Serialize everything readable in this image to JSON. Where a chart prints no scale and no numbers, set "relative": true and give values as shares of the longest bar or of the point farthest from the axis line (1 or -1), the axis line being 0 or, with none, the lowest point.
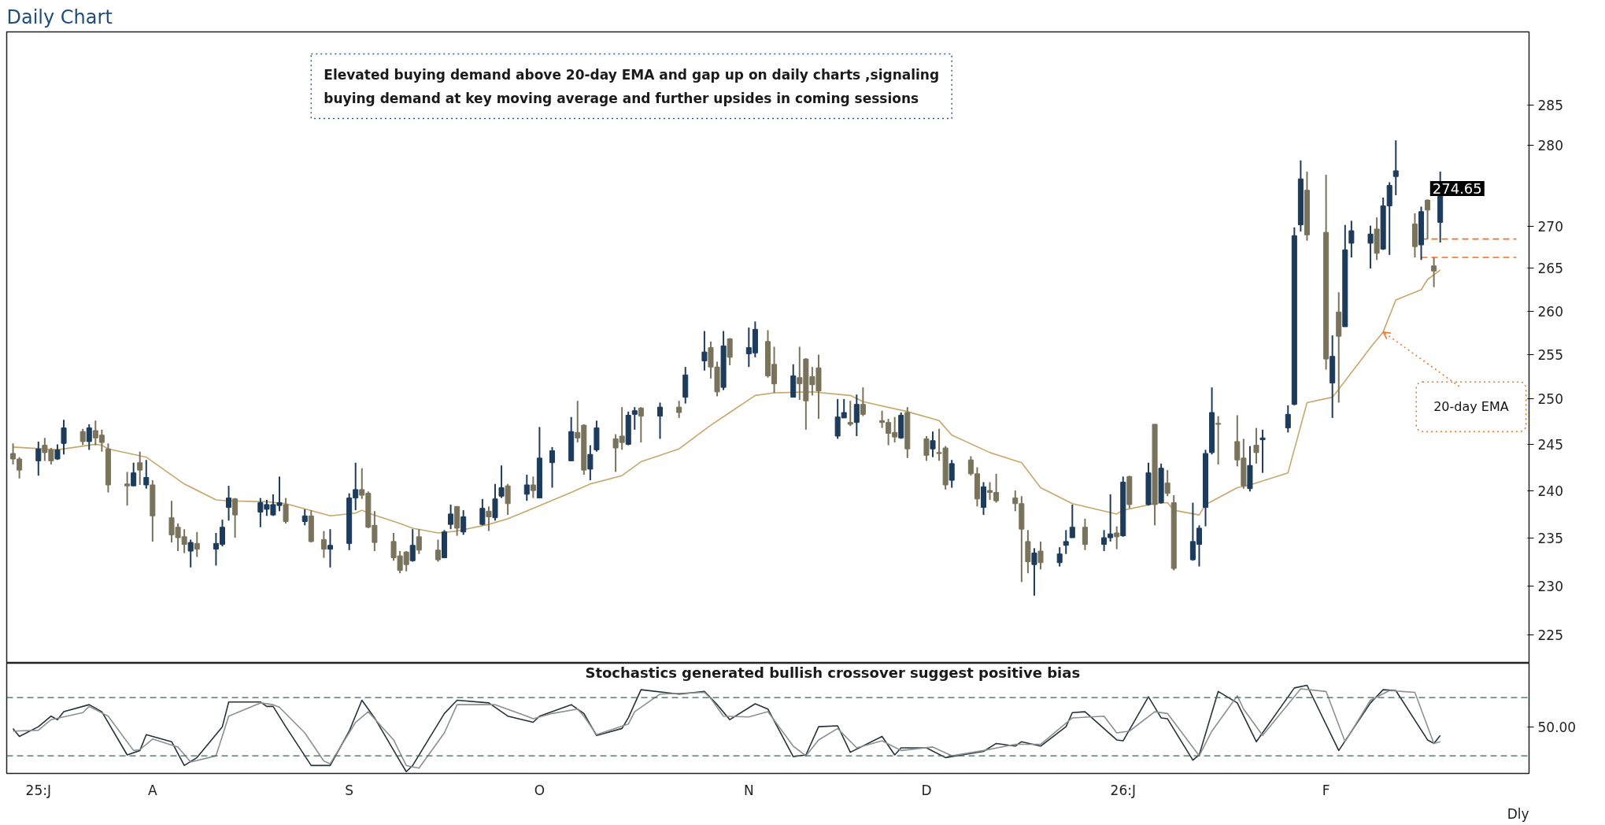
{
  "chart_data": [
    {
      "type": "candlestick",
      "title": "Daily Chart",
      "x": [
        "2025-07-10",
        "2025-07-11",
        "2025-07-14",
        "2025-07-15",
        "2025-07-16",
        "2025-07-17",
        "2025-07-18",
        "2025-07-21",
        "2025-07-22",
        "2025-07-23",
        "2025-07-24",
        "2025-07-25",
        "2025-07-28",
        "2025-07-29",
        "2025-07-30",
        "2025-07-31",
        "2025-08-01",
        "2025-08-04",
        "2025-08-05",
        "2025-08-06",
        "2025-08-07",
        "2025-08-08",
        "2025-08-11",
        "2025-08-12",
        "2025-08-13",
        "2025-08-14",
        "2025-08-18",
        "2025-08-19",
        "2025-08-20",
        "2025-08-21",
        "2025-08-22",
        "2025-08-25",
        "2025-08-26",
        "2025-08-28",
        "2025-08-29",
        "2025-09-01",
        "2025-09-02",
        "2025-09-03",
        "2025-09-04",
        "2025-09-05",
        "2025-09-08",
        "2025-09-09",
        "2025-09-10",
        "2025-09-11",
        "2025-09-12",
        "2025-09-15",
        "2025-09-16",
        "2025-09-17",
        "2025-09-18",
        "2025-09-19",
        "2025-09-22",
        "2025-09-23",
        "2025-09-24",
        "2025-09-25",
        "2025-09-26",
        "2025-09-29",
        "2025-09-30",
        "2025-10-01",
        "2025-10-03",
        "2025-10-06",
        "2025-10-07",
        "2025-10-08",
        "2025-10-09",
        "2025-10-10",
        "2025-10-13",
        "2025-10-14",
        "2025-10-15",
        "2025-10-16",
        "2025-10-17",
        "2025-10-20",
        "2025-10-23",
        "2025-10-24",
        "2025-10-27",
        "2025-10-28",
        "2025-10-29",
        "2025-10-30",
        "2025-10-31",
        "2025-11-03",
        "2025-11-04",
        "2025-11-06",
        "2025-11-07",
        "2025-11-10",
        "2025-11-11",
        "2025-11-12",
        "2025-11-13",
        "2025-11-14",
        "2025-11-17",
        "2025-11-18",
        "2025-11-19",
        "2025-11-20",
        "2025-11-21",
        "2025-11-24",
        "2025-11-25",
        "2025-11-26",
        "2025-11-27",
        "2025-11-28",
        "2025-12-01",
        "2025-12-02",
        "2025-12-03",
        "2025-12-04",
        "2025-12-05",
        "2025-12-08",
        "2025-12-09",
        "2025-12-10",
        "2025-12-11",
        "2025-12-12",
        "2025-12-15",
        "2025-12-16",
        "2025-12-17",
        "2025-12-18",
        "2025-12-19",
        "2025-12-22",
        "2025-12-23",
        "2025-12-24",
        "2025-12-26",
        "2025-12-29",
        "2025-12-30",
        "2025-12-31",
        "2026-01-01",
        "2026-01-02",
        "2026-01-05",
        "2026-01-06",
        "2026-01-07",
        "2026-01-08",
        "2026-01-09",
        "2026-01-12",
        "2026-01-13",
        "2026-01-14",
        "2026-01-15",
        "2026-01-16",
        "2026-01-19",
        "2026-01-20",
        "2026-01-21",
        "2026-01-22",
        "2026-01-23",
        "2026-01-27",
        "2026-01-28",
        "2026-01-29",
        "2026-01-30",
        "2026-02-02",
        "2026-02-03",
        "2026-02-04",
        "2026-02-05",
        "2026-02-06",
        "2026-02-09",
        "2026-02-10",
        "2026-02-11",
        "2026-02-12",
        "2026-02-13",
        "2026-02-16",
        "2026-02-17",
        "2026-02-18",
        "2026-02-19",
        "2026-02-20"
      ],
      "ohlc": [
        [
          244.0,
          245.1,
          242.8,
          243.4
        ],
        [
          243.4,
          243.6,
          241.3,
          242.2
        ],
        [
          243.2,
          245.3,
          241.6,
          244.5
        ],
        [
          244.9,
          245.7,
          243.2,
          244.1
        ],
        [
          244.4,
          244.6,
          242.8,
          243.2
        ],
        [
          243.4,
          245.0,
          243.3,
          244.4
        ],
        [
          245.1,
          247.7,
          243.9,
          246.8
        ],
        [
          246.4,
          246.7,
          244.9,
          245.3
        ],
        [
          245.3,
          247.2,
          244.4,
          246.8
        ],
        [
          246.5,
          247.6,
          244.9,
          245.7
        ],
        [
          246.0,
          246.6,
          244.2,
          245.2
        ],
        [
          244.5,
          245.1,
          239.8,
          240.6
        ],
        [
          240.7,
          242.0,
          238.4,
          240.5
        ],
        [
          240.5,
          243.0,
          240.5,
          241.9
        ],
        [
          243.0,
          244.2,
          240.6,
          242.2
        ],
        [
          240.6,
          243.3,
          240.2,
          241.4
        ],
        [
          240.6,
          241.1,
          234.6,
          237.3
        ],
        [
          237.1,
          238.9,
          234.5,
          235.3
        ],
        [
          236.1,
          236.5,
          233.6,
          235.0
        ],
        [
          235.1,
          235.9,
          233.4,
          234.3
        ],
        [
          233.6,
          234.8,
          231.9,
          234.5
        ],
        [
          234.4,
          235.6,
          233.0,
          233.8
        ],
        [
          233.8,
          235.5,
          232.1,
          234.4
        ],
        [
          234.3,
          236.9,
          234.1,
          236.1
        ],
        [
          238.2,
          240.5,
          236.8,
          239.2
        ],
        [
          239.1,
          239.2,
          235.0,
          237.4
        ],
        [
          237.7,
          239.2,
          236.1,
          238.7
        ],
        [
          238.0,
          239.0,
          237.3,
          238.5
        ],
        [
          237.4,
          239.6,
          237.3,
          238.5
        ],
        [
          238.4,
          241.5,
          237.8,
          238.7
        ],
        [
          238.5,
          239.2,
          236.5,
          236.7
        ],
        [
          236.7,
          238.0,
          236.3,
          237.3
        ],
        [
          237.3,
          237.9,
          234.5,
          234.6
        ],
        [
          234.8,
          235.7,
          232.9,
          233.8
        ],
        [
          233.8,
          235.9,
          231.9,
          234.2
        ],
        [
          234.4,
          239.7,
          233.7,
          239.2
        ],
        [
          239.2,
          243.0,
          237.9,
          240.1
        ],
        [
          240.1,
          242.4,
          239.1,
          239.5
        ],
        [
          239.7,
          239.9,
          236.0,
          236.1
        ],
        [
          236.3,
          237.8,
          233.6,
          234.5
        ],
        [
          234.6,
          235.5,
          232.6,
          232.9
        ],
        [
          233.1,
          233.6,
          231.3,
          231.6
        ],
        [
          233.5,
          233.6,
          231.5,
          232.2
        ],
        [
          232.6,
          235.9,
          232.5,
          234.2
        ],
        [
          235.1,
          235.9,
          233.3,
          233.7
        ],
        [
          233.7,
          234.8,
          232.5,
          232.7
        ],
        [
          232.9,
          235.8,
          232.9,
          235.6
        ],
        [
          236.4,
          238.5,
          235.9,
          237.5
        ],
        [
          238.3,
          238.3,
          235.2,
          236.0
        ],
        [
          235.6,
          237.9,
          235.3,
          237.2
        ],
        [
          236.4,
          239.1,
          236.3,
          238.1
        ],
        [
          237.8,
          238.3,
          235.7,
          237.2
        ],
        [
          237.1,
          240.7,
          236.8,
          239.1
        ],
        [
          239.4,
          242.7,
          239.2,
          240.3
        ],
        [
          240.5,
          240.7,
          237.4,
          238.6
        ],
        [
          239.6,
          241.7,
          238.9,
          240.6
        ],
        [
          240.6,
          241.5,
          239.2,
          240.0
        ],
        [
          239.2,
          246.9,
          239.2,
          243.5
        ],
        [
          243.0,
          244.7,
          240.3,
          244.3
        ],
        [
          243.2,
          248.0,
          243.2,
          246.4
        ],
        [
          246.3,
          249.8,
          245.2,
          245.7
        ],
        [
          247.1,
          247.2,
          241.7,
          242.2
        ],
        [
          242.3,
          244.9,
          241.1,
          243.9
        ],
        [
          244.4,
          247.6,
          244.2,
          246.8
        ],
        [
          245.6,
          246.1,
          242.0,
          244.6
        ],
        [
          245.9,
          249.1,
          244.4,
          245.2
        ],
        [
          245.0,
          248.6,
          244.9,
          248.2
        ],
        [
          248.3,
          249.1,
          246.6,
          248.7
        ],
        [
          249.0,
          249.1,
          245.2,
          248.1
        ],
        [
          248.1,
          249.6,
          245.6,
          249.1
        ],
        [
          249.1,
          249.8,
          247.9,
          248.5
        ],
        [
          250.2,
          253.6,
          249.5,
          252.7
        ],
        [
          254.3,
          257.7,
          253.2,
          255.3
        ],
        [
          255.8,
          256.5,
          252.3,
          253.6
        ],
        [
          253.6,
          254.2,
          250.3,
          250.8
        ],
        [
          251.3,
          257.7,
          251.0,
          256.0
        ],
        [
          256.8,
          256.9,
          253.8,
          254.7
        ],
        [
          255.1,
          258.1,
          253.6,
          255.8
        ],
        [
          255.2,
          258.8,
          254.7,
          257.9
        ],
        [
          256.5,
          257.8,
          252.4,
          252.6
        ],
        [
          253.9,
          255.9,
          250.7,
          251.7
        ],
        [
          250.2,
          253.9,
          250.2,
          252.6
        ],
        [
          252.4,
          255.9,
          249.9,
          251.7
        ],
        [
          254.5,
          254.6,
          246.6,
          249.8
        ],
        [
          252.5,
          253.6,
          250.4,
          251.6
        ],
        [
          253.5,
          255.0,
          247.8,
          250.9
        ],
        [
          245.9,
          250.0,
          245.6,
          248.0
        ],
        [
          247.9,
          250.0,
          247.9,
          248.5
        ],
        [
          247.4,
          249.8,
          247.0,
          247.2
        ],
        [
          247.4,
          250.5,
          245.9,
          249.4
        ],
        [
          249.4,
          251.3,
          248.1,
          248.3
        ],
        [
          247.6,
          248.7,
          246.8,
          247.4
        ],
        [
          247.4,
          247.8,
          244.9,
          246.2
        ],
        [
          246.3,
          248.0,
          245.2,
          245.8
        ],
        [
          245.7,
          248.5,
          245.6,
          248.2
        ],
        [
          248.5,
          249.1,
          243.5,
          244.5
        ],
        [
          245.6,
          245.9,
          243.2,
          243.8
        ],
        [
          244.5,
          246.4,
          243.6,
          245.4
        ],
        [
          244.1,
          246.7,
          243.2,
          244.0
        ],
        [
          244.6,
          244.8,
          240.1,
          240.6
        ],
        [
          241.1,
          243.3,
          240.3,
          242.9
        ],
        [
          243.3,
          243.7,
          241.6,
          241.8
        ],
        [
          241.8,
          242.5,
          238.3,
          239.1
        ],
        [
          238.2,
          240.9,
          237.4,
          240.4
        ],
        [
          240.0,
          240.9,
          239.0,
          239.8
        ],
        [
          239.8,
          241.8,
          238.7,
          238.9
        ],
        [
          239.2,
          240.0,
          237.8,
          238.6
        ],
        [
          238.6,
          239.4,
          230.4,
          235.9
        ],
        [
          234.6,
          235.8,
          231.3,
          232.5
        ],
        [
          232.2,
          233.9,
          229.0,
          233.4
        ],
        [
          233.6,
          234.6,
          231.7,
          232.4
        ],
        [
          232.4,
          234.0,
          232.0,
          233.3
        ],
        [
          234.2,
          235.8,
          233.3,
          234.6
        ],
        [
          235.0,
          238.5,
          235.0,
          236.1
        ],
        [
          236.1,
          237.0,
          233.7,
          234.3
        ],
        [
          234.3,
          235.8,
          233.6,
          235.0
        ],
        [
          235.0,
          239.6,
          234.6,
          235.4
        ],
        [
          235.5,
          236.2,
          233.8,
          235.1
        ],
        [
          235.2,
          241.5,
          235.1,
          240.9
        ],
        [
          241.5,
          241.6,
          238.1,
          238.5
        ],
        [
          238.5,
          243.0,
          238.4,
          241.9
        ],
        [
          247.2,
          247.2,
          236.3,
          238.5
        ],
        [
          238.7,
          242.9,
          238.6,
          242.4
        ],
        [
          240.8,
          242.2,
          239.4,
          239.7
        ],
        [
          238.7,
          239.5,
          231.6,
          231.8
        ],
        [
          232.7,
          238.7,
          232.6,
          234.6
        ],
        [
          234.3,
          236.3,
          232.0,
          236.0
        ],
        [
          238.2,
          244.4,
          236.2,
          244.0
        ],
        [
          244.1,
          251.3,
          243.9,
          248.5
        ],
        [
          247.3,
          248.1,
          242.8,
          247.2
        ],
        [
          245.3,
          248.2,
          242.6,
          243.3
        ],
        [
          243.5,
          245.6,
          240.2,
          240.5
        ],
        [
          240.2,
          244.8,
          239.9,
          242.7
        ],
        [
          244.9,
          246.8,
          242.9,
          244.1
        ],
        [
          245.5,
          246.6,
          241.9,
          245.7
        ],
        [
          246.8,
          249.3,
          246.3,
          248.3
        ],
        [
          249.4,
          269.9,
          249.3,
          268.9
        ],
        [
          270.2,
          278.1,
          269.4,
          275.8
        ],
        [
          274.4,
          276.7,
          268.3,
          269.0
        ],
        [
          269.3,
          276.3,
          253.3,
          254.5
        ],
        [
          251.8,
          257.2,
          247.9,
          254.8
        ],
        [
          259.9,
          262.2,
          249.6,
          257.1
        ],
        [
          258.2,
          270.2,
          258.2,
          267.2
        ],
        [
          268.0,
          270.7,
          266.3,
          269.5
        ],
        [
          268.0,
          270.1,
          265.0,
          269.1
        ],
        [
          269.7,
          271.1,
          266.0,
          266.8
        ],
        [
          267.3,
          273.5,
          267.2,
          272.5
        ],
        [
          272.5,
          275.4,
          266.6,
          275.0
        ],
        [
          276.1,
          280.6,
          273.8,
          276.8
        ],
        [
          270.3,
          271.6,
          266.3,
          267.6
        ],
        [
          267.8,
          272.4,
          266.0,
          271.8
        ],
        [
          273.2,
          273.3,
          268.5,
          272.0
        ],
        [
          265.3,
          266.3,
          262.8,
          264.7
        ],
        [
          270.5,
          276.7,
          268.1,
          274.65
        ]
      ],
      "colors": [
        "#7a735c",
        "#7a735c",
        "#1d3c5c",
        "#7a735c",
        "#7a735c",
        "#1d3c5c",
        "#1d3c5c",
        "#7a735c",
        "#1d3c5c",
        "#7a735c",
        "#7a735c",
        "#7a735c",
        "#7a735c",
        "#1d3c5c",
        "#7a735c",
        "#1d3c5c",
        "#7a735c",
        "#7a735c",
        "#7a735c",
        "#7a735c",
        "#1d3c5c",
        "#7a735c",
        "#1d3c5c",
        "#1d3c5c",
        "#1d3c5c",
        "#7a735c",
        "#1d3c5c",
        "#1d3c5c",
        "#1d3c5c",
        "#1d3c5c",
        "#7a735c",
        "#1d3c5c",
        "#7a735c",
        "#7a735c",
        "#1d3c5c",
        "#1d3c5c",
        "#1d3c5c",
        "#7a735c",
        "#7a735c",
        "#7a735c",
        "#7a735c",
        "#7a735c",
        "#7a735c",
        "#1d3c5c",
        "#7a735c",
        "#7a735c",
        "#1d3c5c",
        "#1d3c5c",
        "#7a735c",
        "#1d3c5c",
        "#1d3c5c",
        "#7a735c",
        "#1d3c5c",
        "#1d3c5c",
        "#7a735c",
        "#1d3c5c",
        "#7a735c",
        "#1d3c5c",
        "#1d3c5c",
        "#1d3c5c",
        "#7a735c",
        "#7a735c",
        "#1d3c5c",
        "#1d3c5c",
        "#7a735c",
        "#7a735c",
        "#1d3c5c",
        "#1d3c5c",
        "#7a735c",
        "#1d3c5c",
        "#7a735c",
        "#1d3c5c",
        "#1d3c5c",
        "#7a735c",
        "#7a735c",
        "#1d3c5c",
        "#7a735c",
        "#1d3c5c",
        "#1d3c5c",
        "#7a735c",
        "#7a735c",
        "#1d3c5c",
        "#7a735c",
        "#7a735c",
        "#7a735c",
        "#7a735c",
        "#1d3c5c",
        "#1d3c5c",
        "#7a735c",
        "#1d3c5c",
        "#7a735c",
        "#7a735c",
        "#7a735c",
        "#7a735c",
        "#1d3c5c",
        "#7a735c",
        "#7a735c",
        "#1d3c5c",
        "#7a735c",
        "#7a735c",
        "#1d3c5c",
        "#7a735c",
        "#7a735c",
        "#1d3c5c",
        "#7a735c",
        "#7a735c",
        "#7a735c",
        "#7a735c",
        "#7a735c",
        "#1d3c5c",
        "#7a735c",
        "#1d3c5c",
        "#1d3c5c",
        "#1d3c5c",
        "#7a735c",
        "#1d3c5c",
        "#1d3c5c",
        "#7a735c",
        "#1d3c5c",
        "#7a735c",
        "#1d3c5c",
        "#7a735c",
        "#1d3c5c",
        "#7a735c",
        "#7a735c",
        "#1d3c5c",
        "#1d3c5c",
        "#1d3c5c",
        "#1d3c5c",
        "#7a735c",
        "#7a735c",
        "#7a735c",
        "#1d3c5c",
        "#7a735c",
        "#1d3c5c",
        "#1d3c5c",
        "#1d3c5c",
        "#1d3c5c",
        "#7a735c",
        "#7a735c",
        "#1d3c5c",
        "#7a735c",
        "#1d3c5c",
        "#1d3c5c",
        "#1d3c5c",
        "#7a735c",
        "#1d3c5c",
        "#1d3c5c",
        "#1d3c5c",
        "#7a735c",
        "#1d3c5c",
        "#7a735c",
        "#7a735c",
        "#1d3c5c"
      ],
      "series": [
        {
          "type": "line",
          "color": "#c9a66b",
          "x": [
            "2025-07-10",
            "2025-07-17",
            "2025-07-23",
            "2025-07-24",
            "2025-07-25",
            "2025-07-31",
            "2025-08-06",
            "2025-08-11",
            "2025-08-13",
            "2025-08-19",
            "2025-08-22",
            "2025-08-29",
            "2025-09-02",
            "2025-09-03",
            "2025-09-04",
            "2025-09-09",
            "2025-09-11",
            "2025-09-15",
            "2025-09-18",
            "2025-09-23",
            "2025-09-26",
            "2025-09-30",
            "2025-10-06",
            "2025-10-09",
            "2025-10-14",
            "2025-10-17",
            "2025-10-23",
            "2025-10-28",
            "2025-10-31",
            "2025-11-04",
            "2025-11-07",
            "2025-11-13",
            "2025-11-19",
            "2025-11-21",
            "2025-11-28",
            "2025-12-03",
            "2025-12-05",
            "2025-12-11",
            "2025-12-16",
            "2025-12-19",
            "2025-12-24",
            "2025-12-31",
            "2026-01-01",
            "2026-01-06",
            "2026-01-08",
            "2026-01-09",
            "2026-01-13",
            "2026-01-14",
            "2026-01-19",
            "2026-01-21",
            "2026-01-27",
            "2026-01-30",
            "2026-02-03",
            "2026-02-04",
            "2026-02-09",
            "2026-02-11",
            "2026-02-13",
            "2026-02-17",
            "2026-02-18",
            "2026-02-20"
          ],
          "values": [
            244.7,
            244.4,
            245.0,
            244.9,
            244.5,
            243.6,
            240.7,
            239.0,
            238.9,
            238.8,
            238.6,
            237.3,
            237.6,
            237.9,
            237.6,
            236.5,
            236.0,
            235.5,
            235.7,
            236.4,
            237.0,
            238.1,
            239.8,
            240.7,
            241.6,
            243.1,
            244.5,
            247.1,
            248.5,
            250.4,
            250.7,
            250.8,
            250.4,
            249.7,
            248.6,
            247.6,
            246.0,
            244.1,
            243.0,
            240.3,
            238.6,
            237.5,
            237.9,
            238.6,
            238.7,
            237.9,
            237.4,
            238.5,
            240.3,
            240.6,
            241.9,
            249.6,
            250.2,
            251.1,
            255.8,
            257.6,
            261.3,
            262.5,
            263.7,
            264.8
          ]
        },
        {
          "type": "line",
          "color": "#f07020",
          "line_style": "dashed",
          "x": [
            "2026-02-17",
            "2026-03-04"
          ],
          "values": [
            268.5,
            268.5
          ]
        },
        {
          "type": "line",
          "color": "#f07020",
          "line_style": "dashed",
          "x": [
            "2026-02-17",
            "2026-03-04"
          ],
          "values": [
            266.3,
            266.3
          ]
        }
      ],
      "xlim": [
        "2025-07-09",
        "2026-03-06"
      ],
      "ylim": [
        222.2,
        294.5
      ],
      "log": true,
      "yticks": [
        225,
        230,
        235,
        240,
        245,
        250,
        255,
        260,
        265,
        270,
        280,
        285
      ],
      "tick_labels": "y",
      "annotations": [
        "Elevated buying demand above 20-day EMA and gap up on daily charts ,signaling\nbuying demand at key moving average and further upsides in coming sessions",
        {
          "text": "20-day EMA",
          "x": "2026-02-11",
          "y": 257.6
        },
        "274.65"
      ]
    },
    {
      "type": "line",
      "relative": true,
      "series": [
        {
          "color": "#23323c",
          "x": [
            "2025-07-10",
            "2025-07-11",
            "2025-07-14",
            "2025-07-16",
            "2025-07-17",
            "2025-07-18",
            "2025-07-22",
            "2025-07-24",
            "2025-07-28",
            "2025-07-30",
            "2025-07-31",
            "2025-08-04",
            "2025-08-06",
            "2025-08-08",
            "2025-08-12",
            "2025-08-13",
            "2025-08-18",
            "2025-08-19",
            "2025-08-20",
            "2025-08-22",
            "2025-08-26",
            "2025-08-29",
            "2025-09-01",
            "2025-09-03",
            "2025-09-05",
            "2025-09-09",
            "2025-09-10",
            "2025-09-11",
            "2025-09-16",
            "2025-09-18",
            "2025-09-23",
            "2025-09-26",
            "2025-09-30",
            "2025-10-01",
            "2025-10-06",
            "2025-10-08",
            "2025-10-10",
            "2025-10-14",
            "2025-10-15",
            "2025-10-17",
            "2025-10-23",
            "2025-10-27",
            "2025-10-29",
            "2025-10-31",
            "2025-11-04",
            "2025-11-06",
            "2025-11-10",
            "2025-11-12",
            "2025-11-14",
            "2025-11-17",
            "2025-11-19",
            "2025-11-24",
            "2025-11-26",
            "2025-11-27",
            "2025-12-01",
            "2025-12-04",
            "2025-12-10",
            "2025-12-12",
            "2025-12-15",
            "2025-12-16",
            "2025-12-19",
            "2025-12-23",
            "2025-12-24",
            "2025-12-26",
            "2025-12-31",
            "2026-01-01",
            "2026-01-05",
            "2026-01-07",
            "2026-01-08",
            "2026-01-12",
            "2026-01-13",
            "2026-01-16",
            "2026-01-19",
            "2026-01-22",
            "2026-01-28",
            "2026-01-30",
            "2026-02-04",
            "2026-02-09",
            "2026-02-11",
            "2026-02-13",
            "2026-02-18",
            "2026-02-19",
            "2026-02-20"
          ],
          "values": [
            0.51,
            0.42,
            0.53,
            0.65,
            0.61,
            0.7,
            0.78,
            0.7,
            0.21,
            0.26,
            0.44,
            0.36,
            0.09,
            0.18,
            0.53,
            0.81,
            0.81,
            0.76,
            0.76,
            0.53,
            0.09,
            0.09,
            0.48,
            0.83,
            0.63,
            0.14,
            0.02,
            0.09,
            0.68,
            0.83,
            0.8,
            0.65,
            0.58,
            0.65,
            0.78,
            0.68,
            0.43,
            0.51,
            0.63,
            0.95,
            0.9,
            0.93,
            0.78,
            0.61,
            0.79,
            0.73,
            0.19,
            0.21,
            0.53,
            0.54,
            0.24,
            0.42,
            0.21,
            0.29,
            0.29,
            0.18,
            0.25,
            0.34,
            0.31,
            0.36,
            0.31,
            0.53,
            0.69,
            0.7,
            0.38,
            0.37,
            0.87,
            0.63,
            0.62,
            0.15,
            0.21,
            0.93,
            0.8,
            0.36,
            0.97,
            1.0,
            0.26,
            0.8,
            0.95,
            0.94,
            0.38,
            0.34,
            0.43
          ]
        },
        {
          "color": "#8c9090",
          "x": [
            "2025-07-10",
            "2025-07-14",
            "2025-07-16",
            "2025-07-21",
            "2025-07-22",
            "2025-07-25",
            "2025-07-29",
            "2025-07-30",
            "2025-08-01",
            "2025-08-05",
            "2025-08-07",
            "2025-08-11",
            "2025-08-13",
            "2025-08-18",
            "2025-08-20",
            "2025-08-21",
            "2025-08-25",
            "2025-08-28",
            "2025-08-29",
            "2025-09-02",
            "2025-09-04",
            "2025-09-08",
            "2025-09-10",
            "2025-09-12",
            "2025-09-16",
            "2025-09-18",
            "2025-09-24",
            "2025-09-29",
            "2025-09-30",
            "2025-10-03",
            "2025-10-07",
            "2025-10-08",
            "2025-10-10",
            "2025-10-15",
            "2025-10-16",
            "2025-10-20",
            "2025-10-27",
            "2025-10-28",
            "2025-10-30",
            "2025-11-03",
            "2025-11-06",
            "2025-11-10",
            "2025-11-12",
            "2025-11-14",
            "2025-11-17",
            "2025-11-20",
            "2025-11-24",
            "2025-11-27",
            "2025-12-02",
            "2025-12-05",
            "2025-12-10",
            "2025-12-15",
            "2025-12-19",
            "2025-12-24",
            "2025-12-29",
            "2025-12-31",
            "2026-01-02",
            "2026-01-06",
            "2026-01-08",
            "2026-01-13",
            "2026-01-15",
            "2026-01-19",
            "2026-01-20",
            "2026-01-23",
            "2026-01-29",
            "2026-02-02",
            "2026-02-05",
            "2026-02-09",
            "2026-02-12",
            "2026-02-16",
            "2026-02-19",
            "2026-02-20"
          ],
          "values": [
            0.48,
            0.49,
            0.61,
            0.69,
            0.76,
            0.65,
            0.26,
            0.27,
            0.39,
            0.3,
            0.13,
            0.2,
            0.65,
            0.8,
            0.78,
            0.75,
            0.46,
            0.14,
            0.11,
            0.58,
            0.7,
            0.38,
            0.09,
            0.06,
            0.46,
            0.78,
            0.78,
            0.65,
            0.62,
            0.68,
            0.73,
            0.65,
            0.44,
            0.56,
            0.7,
            0.9,
            0.92,
            0.85,
            0.65,
            0.64,
            0.7,
            0.31,
            0.2,
            0.38,
            0.51,
            0.29,
            0.37,
            0.26,
            0.3,
            0.2,
            0.26,
            0.33,
            0.33,
            0.63,
            0.65,
            0.46,
            0.48,
            0.7,
            0.68,
            0.2,
            0.48,
            0.88,
            0.73,
            0.43,
            0.96,
            0.93,
            0.36,
            0.83,
            0.94,
            0.92,
            0.34,
            0.36
          ]
        }
      ],
      "xlim": [
        "2025-07-09",
        "2026-03-06"
      ],
      "xticks": [
        {
          "value": "2025-07-14",
          "label": "25:J"
        },
        {
          "value": "2025-08-01",
          "label": "A"
        },
        {
          "value": "2025-09-01",
          "label": "S"
        },
        {
          "value": "2025-10-01",
          "label": "O"
        },
        {
          "value": "2025-11-03",
          "label": "N"
        },
        {
          "value": "2025-12-01",
          "label": "D"
        },
        {
          "value": "2026-01-01",
          "label": "26:J"
        },
        {
          "value": "2026-02-02",
          "label": "F"
        }
      ],
      "ref_lines": [
        {
          "axis": "y",
          "value": 0.86,
          "color": "#3f6650",
          "line_style": "dashed"
        },
        {
          "axis": "y",
          "value": 0.2,
          "color": "#3f6650",
          "line_style": "dashed"
        }
      ],
      "annotations": [
        "Stochastics generated bullish crossover suggest positive bias",
        "50.00",
        "Dly"
      ]
    }
  ]
}
